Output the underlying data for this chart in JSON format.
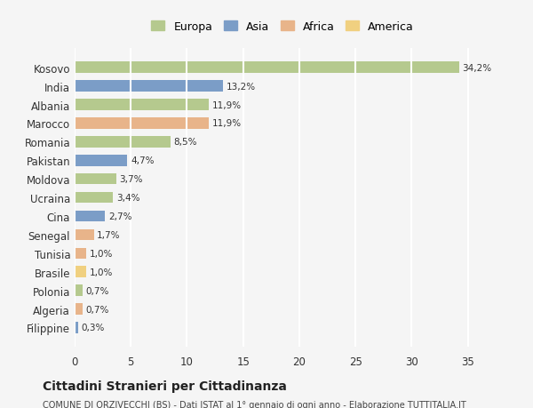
{
  "countries": [
    "Kosovo",
    "India",
    "Albania",
    "Marocco",
    "Romania",
    "Pakistan",
    "Moldova",
    "Ucraina",
    "Cina",
    "Senegal",
    "Tunisia",
    "Brasile",
    "Polonia",
    "Algeria",
    "Filippine"
  ],
  "values": [
    34.2,
    13.2,
    11.9,
    11.9,
    8.5,
    4.7,
    3.7,
    3.4,
    2.7,
    1.7,
    1.0,
    1.0,
    0.7,
    0.7,
    0.3
  ],
  "labels": [
    "34,2%",
    "13,2%",
    "11,9%",
    "11,9%",
    "8,5%",
    "4,7%",
    "3,7%",
    "3,4%",
    "2,7%",
    "1,7%",
    "1,0%",
    "1,0%",
    "0,7%",
    "0,7%",
    "0,3%"
  ],
  "colors": [
    "#b5c98e",
    "#7b9dc7",
    "#b5c98e",
    "#e8b48a",
    "#b5c98e",
    "#7b9dc7",
    "#b5c98e",
    "#b5c98e",
    "#7b9dc7",
    "#e8b48a",
    "#e8b48a",
    "#f0d080",
    "#b5c98e",
    "#e8b48a",
    "#7b9dc7"
  ],
  "legend_labels": [
    "Europa",
    "Asia",
    "Africa",
    "America"
  ],
  "legend_colors": [
    "#b5c98e",
    "#7b9dc7",
    "#e8b48a",
    "#f0d080"
  ],
  "title": "Cittadini Stranieri per Cittadinanza",
  "subtitle": "COMUNE DI ORZIVECCHI (BS) - Dati ISTAT al 1° gennaio di ogni anno - Elaborazione TUTTITALIA.IT",
  "xlim": [
    0,
    37
  ],
  "xticks": [
    0,
    5,
    10,
    15,
    20,
    25,
    30,
    35
  ],
  "background_color": "#f5f5f5",
  "grid_color": "#ffffff"
}
